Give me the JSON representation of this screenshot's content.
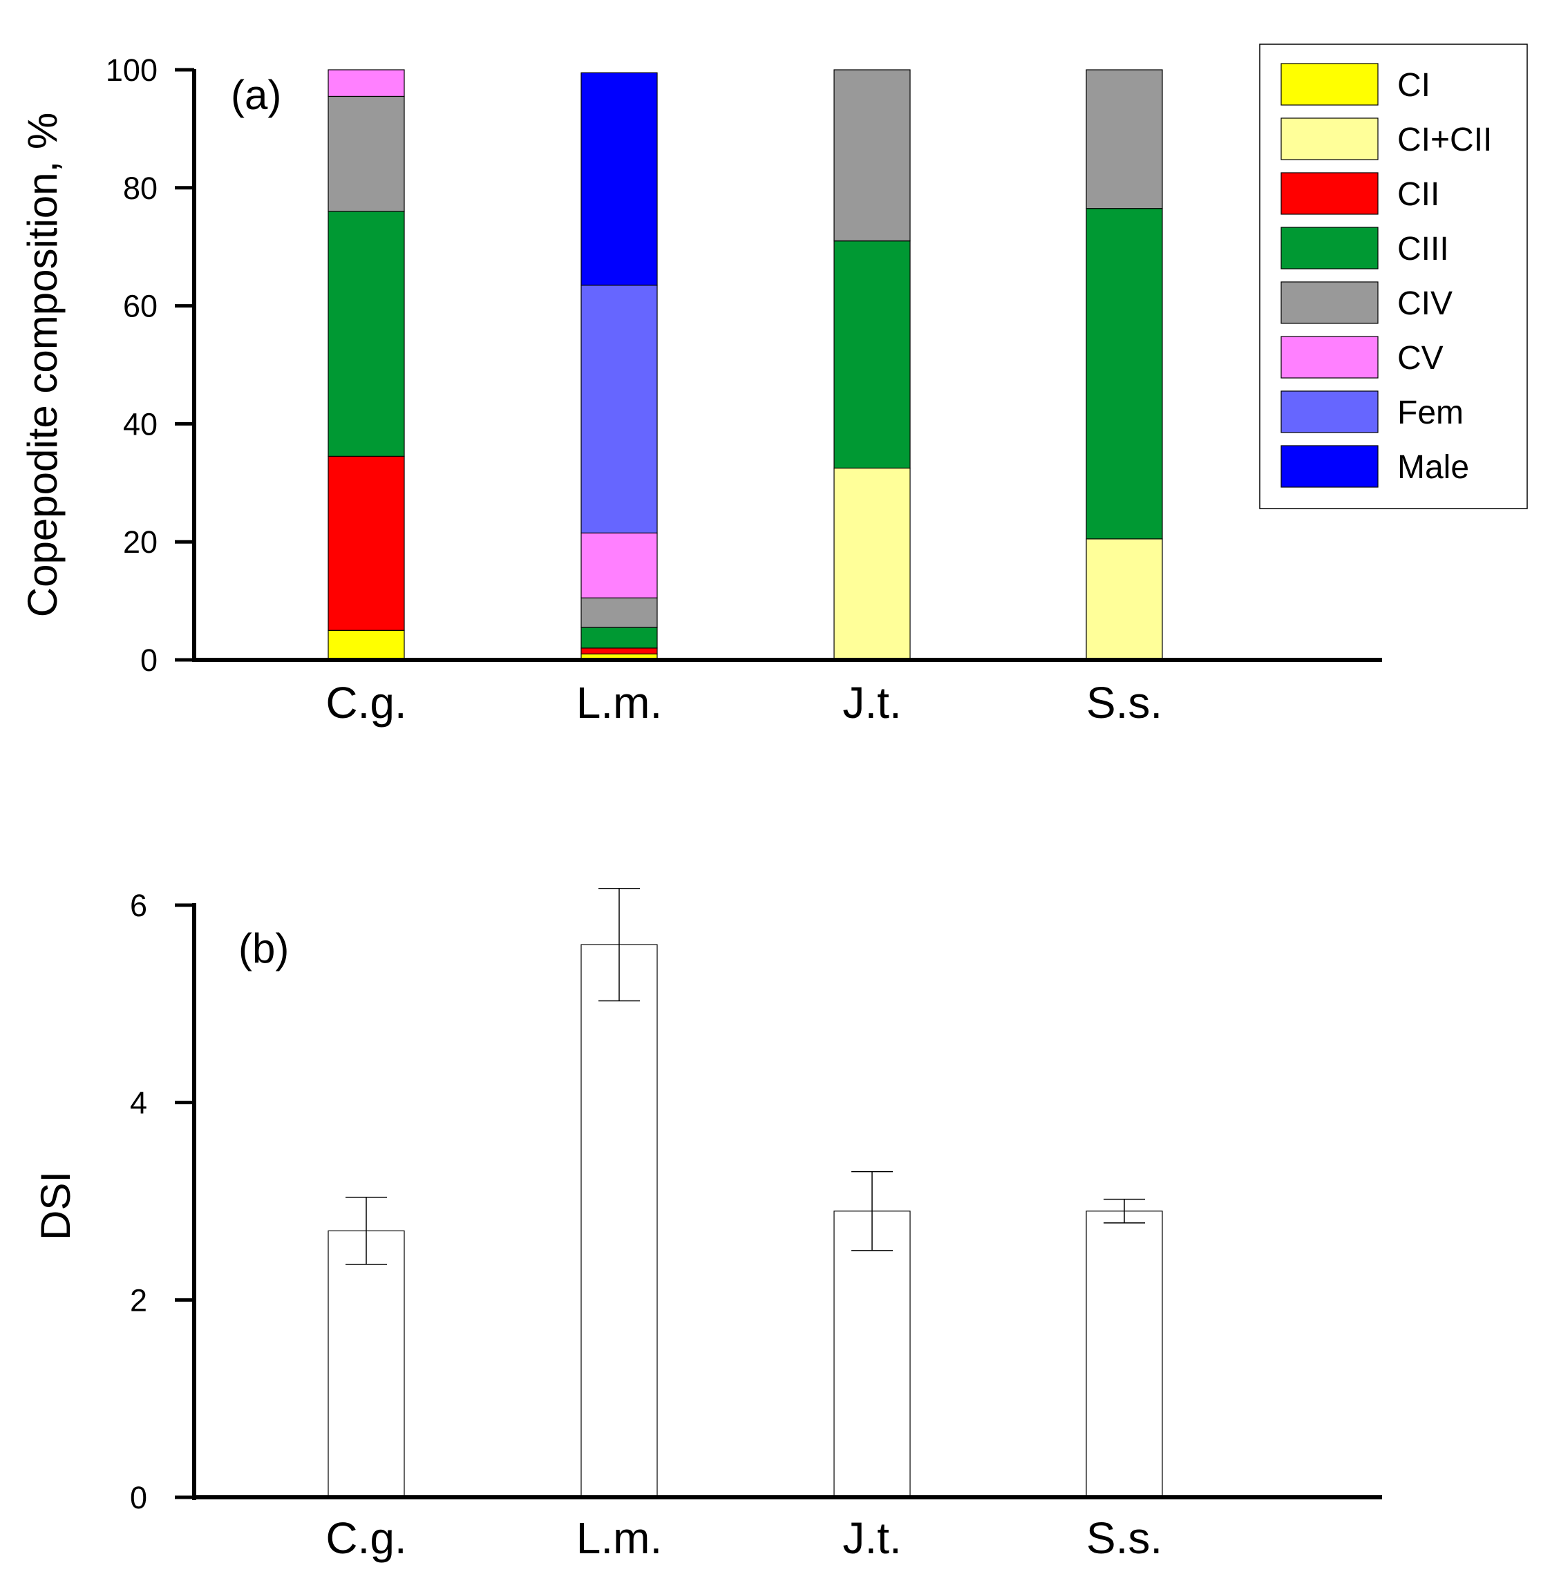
{
  "chart_data": [
    {
      "type": "bar",
      "stacked": true,
      "panel_label": "(a)",
      "title": "",
      "xlabel": "",
      "ylabel": "Copepodite composition, %",
      "ylim": [
        0,
        100
      ],
      "yticks": [
        0,
        20,
        40,
        60,
        80,
        100
      ],
      "categories": [
        "C.g.",
        "L.m.",
        "J.t.",
        "S.s."
      ],
      "legend_position": "top-right",
      "series": [
        {
          "name": "CI",
          "color": "#ffff00",
          "values": [
            5,
            1,
            0,
            0
          ]
        },
        {
          "name": "CI+CII",
          "color": "#ffff99",
          "values": [
            0,
            0,
            32.5,
            20.5
          ]
        },
        {
          "name": "CII",
          "color": "#ff0000",
          "values": [
            29.5,
            1,
            0,
            0
          ]
        },
        {
          "name": "CIII",
          "color": "#009933",
          "values": [
            41.5,
            3.5,
            38.5,
            56
          ]
        },
        {
          "name": "CIV",
          "color": "#999999",
          "values": [
            19.5,
            5,
            29,
            23.5
          ]
        },
        {
          "name": "CV",
          "color": "#ff80ff",
          "values": [
            4.5,
            11,
            0,
            0
          ]
        },
        {
          "name": "Fem",
          "color": "#6666ff",
          "values": [
            0,
            42,
            0,
            0
          ]
        },
        {
          "name": "Male",
          "color": "#0000ff",
          "values": [
            0,
            36,
            0,
            0
          ]
        }
      ]
    },
    {
      "type": "bar",
      "panel_label": "(b)",
      "title": "",
      "xlabel": "",
      "ylabel": "DSI",
      "ylim": [
        0,
        6
      ],
      "yticks": [
        0,
        2,
        4,
        6
      ],
      "categories": [
        "C.g.",
        "L.m.",
        "J.t.",
        "S.s."
      ],
      "values": [
        2.7,
        5.6,
        2.9,
        2.9
      ],
      "errors": [
        0.34,
        0.57,
        0.4,
        0.12
      ],
      "bar_color": "#ffffff"
    }
  ]
}
